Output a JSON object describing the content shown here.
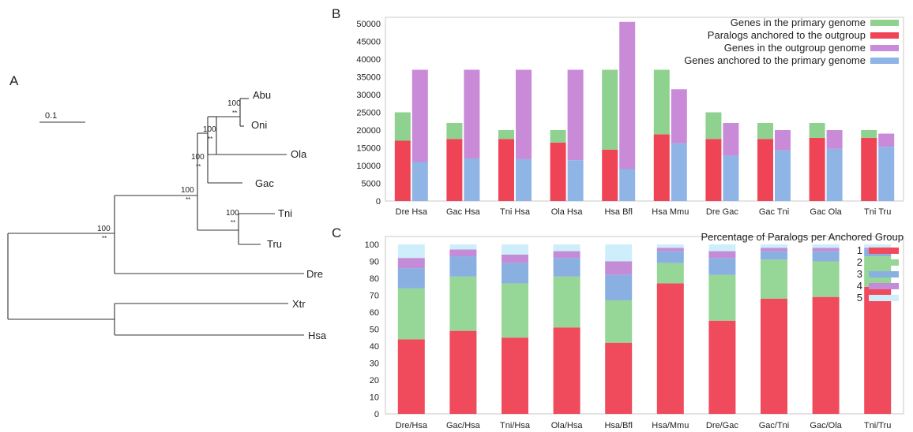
{
  "panels": {
    "a": "A",
    "b": "B",
    "c": "C"
  },
  "tree": {
    "scale_label": "0.1",
    "taxa": [
      "Abu",
      "Oni",
      "Ola",
      "Gac",
      "Tni",
      "Tru",
      "Dre",
      "Xtr",
      "Hsa"
    ],
    "bootstrap": [
      "100",
      "100",
      "100",
      "100",
      "100",
      "100"
    ],
    "stars": "**"
  },
  "chart_data": [
    {
      "type": "bar",
      "panel": "B",
      "categories": [
        "Dre Hsa",
        "Gac Hsa",
        "Tni Hsa",
        "Ola Hsa",
        "Hsa Bfl",
        "Hsa Mmu",
        "Dre Gac",
        "Gac Tni",
        "Gac Ola",
        "Tni Tru"
      ],
      "ylim": [
        0,
        50000
      ],
      "yticks": [
        0,
        5000,
        10000,
        15000,
        20000,
        25000,
        30000,
        35000,
        40000,
        45000,
        50000
      ],
      "legend_position": "top-right",
      "legend": [
        {
          "name": "Genes in the primary genome",
          "color": "#8fd18f"
        },
        {
          "name": "Paralogs anchored to the outgroup",
          "color": "#ee4455"
        },
        {
          "name": "Genes in the outgroup genome",
          "color": "#c98ad8"
        },
        {
          "name": "Genes anchored to the primary genome",
          "color": "#8fb5e6"
        }
      ],
      "primary_bar": {
        "genes_in_primary_genome": [
          25000,
          22000,
          20000,
          20000,
          37000,
          37000,
          25000,
          22000,
          22000,
          20000
        ],
        "paralogs_anchored_to_outgroup": [
          17000,
          17500,
          17500,
          16500,
          14500,
          18800,
          17500,
          17500,
          17800,
          17800
        ]
      },
      "outgroup_bar": {
        "genes_in_outgroup_genome": [
          37000,
          37000,
          37000,
          37000,
          50500,
          31500,
          22000,
          20000,
          20000,
          19000
        ],
        "genes_anchored_to_primary_genome": [
          11000,
          12000,
          11800,
          11500,
          9000,
          16300,
          12800,
          14300,
          14700,
          15300
        ]
      }
    },
    {
      "type": "bar",
      "panel": "C",
      "stacked": true,
      "title": "Percentage of Paralogs per Anchored Group",
      "categories": [
        "Dre/Hsa",
        "Gac/Hsa",
        "Tni/Hsa",
        "Ola/Hsa",
        "Hsa/Bfl",
        "Hsa/Mmu",
        "Dre/Gac",
        "Gac/Tni",
        "Gac/Ola",
        "Tni/Tru"
      ],
      "ylim": [
        0,
        100
      ],
      "yticks": [
        0,
        10,
        20,
        30,
        40,
        50,
        60,
        70,
        80,
        90,
        100
      ],
      "legend_position": "top-right",
      "series": [
        {
          "name": "1",
          "color": "#f04b5c",
          "values": [
            44,
            49,
            45,
            51,
            42,
            77,
            55,
            68,
            69,
            75
          ]
        },
        {
          "name": "2",
          "color": "#96d696",
          "values": [
            30,
            32,
            32,
            30,
            25,
            12,
            27,
            23,
            21,
            18
          ]
        },
        {
          "name": "3",
          "color": "#8ab0e2",
          "values": [
            12,
            12,
            12,
            11,
            15,
            7,
            10,
            5,
            6,
            4
          ]
        },
        {
          "name": "4",
          "color": "#c48cd6",
          "values": [
            6,
            4,
            5,
            4,
            8,
            2,
            4,
            2,
            2,
            1
          ]
        },
        {
          "name": "5",
          "color": "#cfeefb",
          "values": [
            8,
            3,
            6,
            4,
            10,
            2,
            4,
            2,
            2,
            2
          ]
        }
      ]
    }
  ]
}
